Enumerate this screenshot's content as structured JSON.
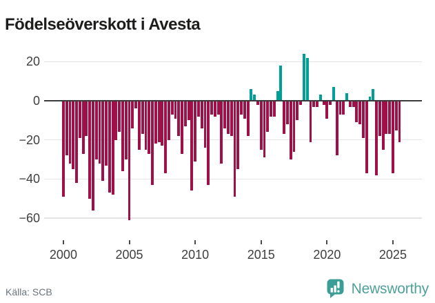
{
  "title": "Födelseöverskott i Avesta",
  "source": "Källa: SCB",
  "branding": {
    "name": "Newsworthy"
  },
  "colors": {
    "negative": "#A01048",
    "positive": "#00A099",
    "axis": "#3a3a3a",
    "grid": "#e4e4e4",
    "tick_label": "#3f3f3f",
    "source_text": "#6a737b",
    "brand": "#4FA099"
  },
  "chart_data": {
    "type": "bar",
    "title": "Födelseöverskott i Avesta",
    "frequency": "quarterly",
    "start": "2000 Q1",
    "end": "2025 Q3",
    "values": [
      -49,
      -28,
      -32,
      -35,
      -42,
      -19,
      -27,
      -18,
      -50,
      -56,
      -30,
      -32,
      -41,
      -33,
      -47,
      -48,
      -20,
      -16,
      -36,
      -30,
      -61,
      -14,
      -4,
      -25,
      -17,
      -25,
      -27,
      -43,
      -22,
      -21,
      -23,
      -37,
      -20,
      -7,
      -9,
      -18,
      -27,
      -13,
      -10,
      -46,
      -31,
      -8,
      -14,
      -24,
      -43,
      -7,
      -8,
      -7,
      -32,
      -14,
      -17,
      -18,
      -49,
      -35,
      -7,
      -9,
      -18,
      6,
      3,
      -2,
      -25,
      -29,
      -16,
      -8,
      -8,
      5,
      18,
      -17,
      -12,
      -30,
      -26,
      -10,
      -2,
      24,
      22,
      -21,
      -3,
      -3,
      3,
      -2,
      -9,
      -2,
      7,
      -28,
      -7,
      -7,
      4,
      -3,
      -3,
      -11,
      -12,
      -19,
      -37,
      2,
      6,
      -38,
      -18,
      -25,
      -17,
      -17,
      -37,
      -15,
      -21
    ],
    "y_ticks": [
      20,
      0,
      -20,
      -40,
      -60
    ],
    "y_tick_labels": [
      "20",
      "0",
      "−20",
      "−40",
      "−60"
    ],
    "x_ticks": [
      2000,
      2005,
      2010,
      2015,
      2020,
      2025
    ],
    "x_tick_labels": [
      "2000",
      "2005",
      "2010",
      "2015",
      "2020",
      "2025"
    ],
    "ylim": [
      -65,
      27
    ],
    "grid": true,
    "legend": false,
    "positive_color": "#00A099",
    "negative_color": "#A01048"
  }
}
